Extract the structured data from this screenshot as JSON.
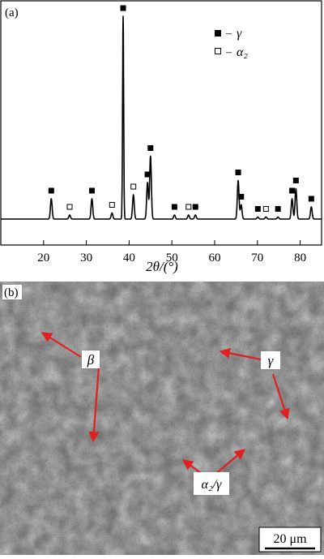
{
  "panel_a": {
    "label": "(a)",
    "xlabel": "2θ/(°)",
    "legend": [
      {
        "marker": "filled-square",
        "symbol": "γ"
      },
      {
        "marker": "open-square",
        "symbol": "α₂"
      }
    ]
  },
  "panel_b": {
    "label": "(b)",
    "annotations": [
      "β",
      "γ",
      "α₂/γ"
    ],
    "scale_bar": "20 μm"
  },
  "chart_data": {
    "type": "line",
    "xlabel": "2θ/(°)",
    "ylabel": "",
    "xlim": [
      10,
      85
    ],
    "xticks": [
      20,
      30,
      40,
      50,
      60,
      70,
      80
    ],
    "grid": false,
    "legend_position": "top-right",
    "series": [
      {
        "name": "γ",
        "marker": "filled-square",
        "peaks": [
          {
            "x": 21.8,
            "intensity": 0.1
          },
          {
            "x": 31.3,
            "intensity": 0.1
          },
          {
            "x": 38.6,
            "intensity": 1.0
          },
          {
            "x": 44.3,
            "intensity": 0.18
          },
          {
            "x": 45.0,
            "intensity": 0.31
          },
          {
            "x": 50.6,
            "intensity": 0.02
          },
          {
            "x": 55.5,
            "intensity": 0.02
          },
          {
            "x": 65.5,
            "intensity": 0.19
          },
          {
            "x": 66.2,
            "intensity": 0.07
          },
          {
            "x": 70.1,
            "intensity": 0.01
          },
          {
            "x": 74.8,
            "intensity": 0.01
          },
          {
            "x": 78.1,
            "intensity": 0.1
          },
          {
            "x": 79.0,
            "intensity": 0.15
          },
          {
            "x": 82.6,
            "intensity": 0.06
          }
        ]
      },
      {
        "name": "α₂",
        "marker": "open-square",
        "peaks": [
          {
            "x": 26.1,
            "intensity": 0.02
          },
          {
            "x": 36.0,
            "intensity": 0.03
          },
          {
            "x": 41.0,
            "intensity": 0.12
          },
          {
            "x": 53.9,
            "intensity": 0.02
          },
          {
            "x": 72.0,
            "intensity": 0.01
          }
        ]
      }
    ]
  },
  "colors": {
    "trace": "#000000",
    "arrow": "#e02020",
    "micrograph_base": "#6b6b6b"
  }
}
